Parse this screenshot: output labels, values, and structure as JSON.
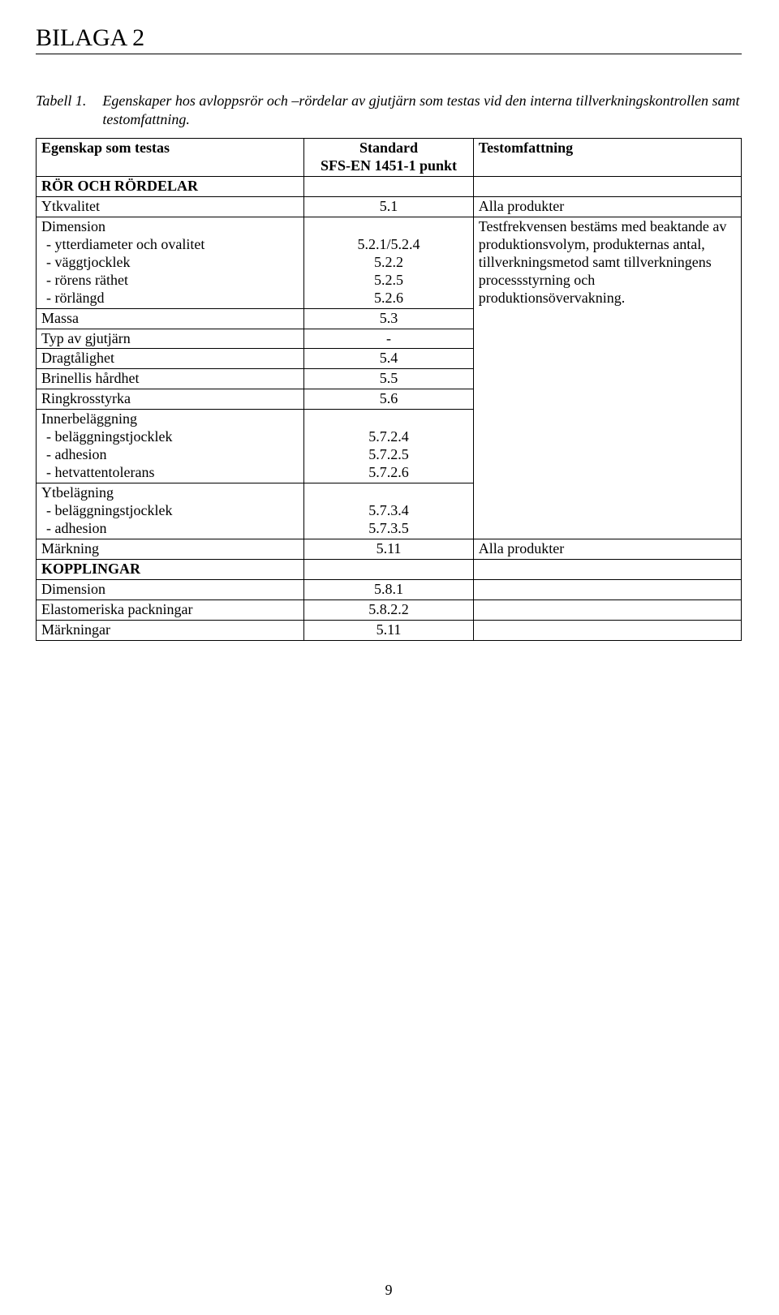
{
  "page_title": "BILAGA 2",
  "caption_label": "Tabell 1.",
  "caption_text": "Egenskaper hos avloppsrör och –rördelar av gjutjärn som testas vid den interna tillverkningskontrollen samt testomfattning.",
  "headers": {
    "col1": "Egenskap som testas",
    "col2": "Standard\nSFS-EN 1451-1 punkt",
    "col3": "Testomfattning"
  },
  "section1": "RÖR OCH RÖRDELAR",
  "rows": {
    "ytkvalitet": {
      "label": "Ytkvalitet",
      "ref": "5.1",
      "note": "Alla produkter"
    },
    "dimension": {
      "label": "Dimension",
      "items": [
        {
          "label": "- ytterdiameter och ovalitet",
          "ref": "5.2.1/5.2.4"
        },
        {
          "label": "- väggtjocklek",
          "ref": "5.2.2"
        },
        {
          "label": "- rörens räthet",
          "ref": "5.2.5"
        },
        {
          "label": "- rörlängd",
          "ref": "5.2.6"
        }
      ],
      "note": "Testfrekvensen bestäms med beaktande av produktionsvolym, produkternas antal, tillverkningsmetod samt tillverkningens processstyrning och produktionsövervakning."
    },
    "massa": {
      "label": "Massa",
      "ref": "5.3"
    },
    "typ": {
      "label": "Typ av gjutjärn",
      "ref": "-"
    },
    "drag": {
      "label": "Dragtålighet",
      "ref": "5.4"
    },
    "brinell": {
      "label": "Brinellis hårdhet",
      "ref": "5.5"
    },
    "ring": {
      "label": "Ringkrosstyrka",
      "ref": "5.6"
    },
    "inner": {
      "label": "Innerbeläggning",
      "items": [
        {
          "label": "- beläggningstjocklek",
          "ref": "5.7.2.4"
        },
        {
          "label": "- adhesion",
          "ref": "5.7.2.5"
        },
        {
          "label": "- hetvattentolerans",
          "ref": "5.7.2.6"
        }
      ]
    },
    "ytbel": {
      "label": "Ytbelägning",
      "items": [
        {
          "label": "- beläggningstjocklek",
          "ref": "5.7.3.4"
        },
        {
          "label": "- adhesion",
          "ref": "5.7.3.5"
        }
      ]
    },
    "markning": {
      "label": "Märkning",
      "ref": "5.11",
      "note": "Alla produkter"
    }
  },
  "section2": "KOPPLINGAR",
  "rows2": {
    "dimension2": {
      "label": "Dimension",
      "ref": "5.8.1"
    },
    "elast": {
      "label": "Elastomeriska packningar",
      "ref": "5.8.2.2"
    },
    "markningar": {
      "label": "Märkningar",
      "ref": "5.11"
    }
  },
  "page_number": "9"
}
